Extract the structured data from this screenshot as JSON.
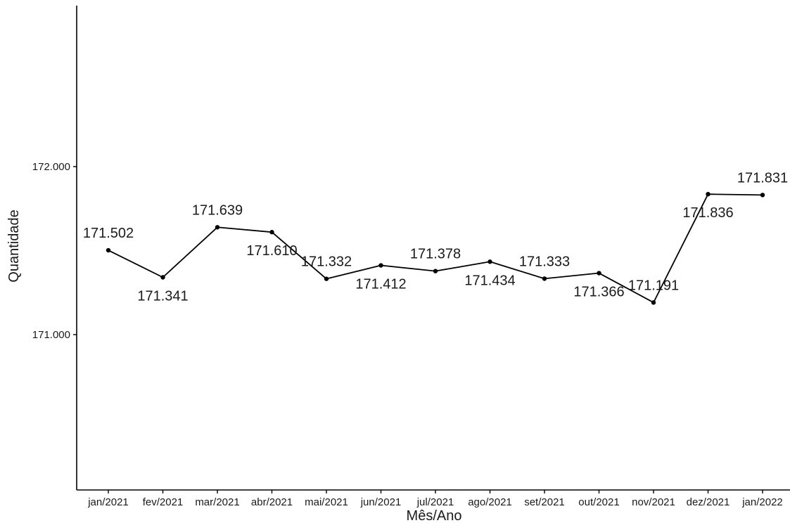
{
  "chart_data": {
    "type": "line",
    "title": "",
    "xlabel": "Mês/Ano",
    "ylabel": "Quantidade",
    "categories": [
      "jan/2021",
      "fev/2021",
      "mar/2021",
      "abr/2021",
      "mai/2021",
      "jun/2021",
      "jul/2021",
      "ago/2021",
      "set/2021",
      "out/2021",
      "nov/2021",
      "dez/2021",
      "jan/2022"
    ],
    "series": [
      {
        "values": [
          171.502,
          171.341,
          171.639,
          171.61,
          171.332,
          171.412,
          171.378,
          171.434,
          171.333,
          171.366,
          171.191,
          171.836,
          171.831
        ],
        "labels": [
          "171.502",
          "171.341",
          "171.639",
          "171.610",
          "171.332",
          "171.412",
          "171.378",
          "171.434",
          "171.333",
          "171.366",
          "171.191",
          "171.836",
          "171.831"
        ],
        "label_positions": [
          "above",
          "below",
          "above",
          "below",
          "above",
          "below",
          "above",
          "below",
          "above",
          "below",
          "above",
          "below",
          "above"
        ]
      }
    ],
    "yticks": [
      171.0,
      172.0
    ],
    "ytick_labels": [
      "171.000",
      "172.000"
    ],
    "ylim": [
      170.1,
      172.95
    ],
    "grid": false,
    "legend": "none",
    "colors": {
      "line": "#000000",
      "point": "#000000",
      "axis": "#000000"
    }
  }
}
